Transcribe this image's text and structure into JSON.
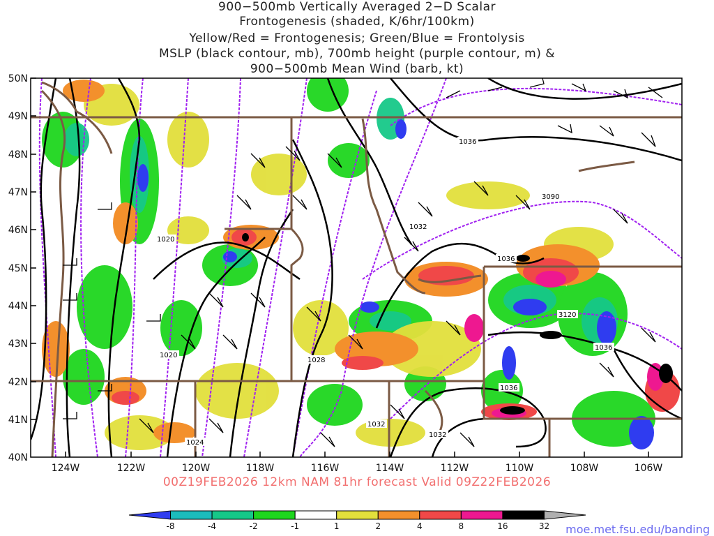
{
  "title": {
    "line1": "900−500mb Vertically Averaged 2−D Scalar",
    "line2": "Frontogenesis (shaded, K/6hr/100km)",
    "line3": "Yellow/Red = Frontogenesis;  Green/Blue = Frontolysis",
    "line4": "MSLP (black contour, mb), 700mb height (purple contour, m) &",
    "line5": "900−500mb Mean Wind (barb, kt)"
  },
  "valid_text": "00Z19FEB2026 12km NAM 81hr forecast Valid 09Z22FEB2026",
  "credit": "moe.met.fsu.edu/banding",
  "lat_labels": [
    "50N",
    "49N",
    "48N",
    "47N",
    "46N",
    "45N",
    "44N",
    "43N",
    "42N",
    "41N",
    "40N"
  ],
  "lon_labels": [
    "124W",
    "122W",
    "120W",
    "118W",
    "116W",
    "114W",
    "112W",
    "110W",
    "108W",
    "106W"
  ],
  "mslp_labels": [
    "1036",
    "1032",
    "1036",
    "1020",
    "1020",
    "1028",
    "1036",
    "1036",
    "1032",
    "1032",
    "1024"
  ],
  "height_labels": [
    "3090",
    "3120"
  ],
  "colorbar": {
    "labels": [
      "-8",
      "-4",
      "-2",
      "-1",
      "1",
      "2",
      "4",
      "8",
      "16",
      "32"
    ],
    "colors": [
      "#2f3cf0",
      "#1cbcbc",
      "#16c888",
      "#1ed61e",
      "#ffffff",
      "#e2df3c",
      "#f3902c",
      "#f04848",
      "#ee1890",
      "#000000",
      "#b0b0b0"
    ]
  },
  "colors": {
    "mslp_contour": "#000000",
    "height_contour": "#a020f0",
    "borders": "#7b5a44",
    "valid_text": "#f26f6f",
    "credit": "#6a6af0"
  }
}
